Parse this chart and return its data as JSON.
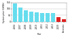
{
  "years": [
    "2004",
    "2007",
    "2008",
    "2009",
    "2010",
    "2011",
    "2012",
    "2013",
    "2020",
    "Estimate"
  ],
  "values": [
    140,
    110,
    90,
    78,
    72,
    70,
    68,
    66,
    38,
    22
  ],
  "bar_colors": [
    "#66ddee",
    "#66ddee",
    "#66ddee",
    "#66ddee",
    "#66ddee",
    "#66ddee",
    "#66ddee",
    "#66ddee",
    "#dd2222",
    "#dd2222"
  ],
  "ylim": [
    0,
    150
  ],
  "yticks": [
    0,
    50,
    100,
    150
  ],
  "ylabel": "System price ($/kWh)",
  "xlabel": "Year",
  "background_color": "#ffffff",
  "grid_color": "#bbbbbb"
}
